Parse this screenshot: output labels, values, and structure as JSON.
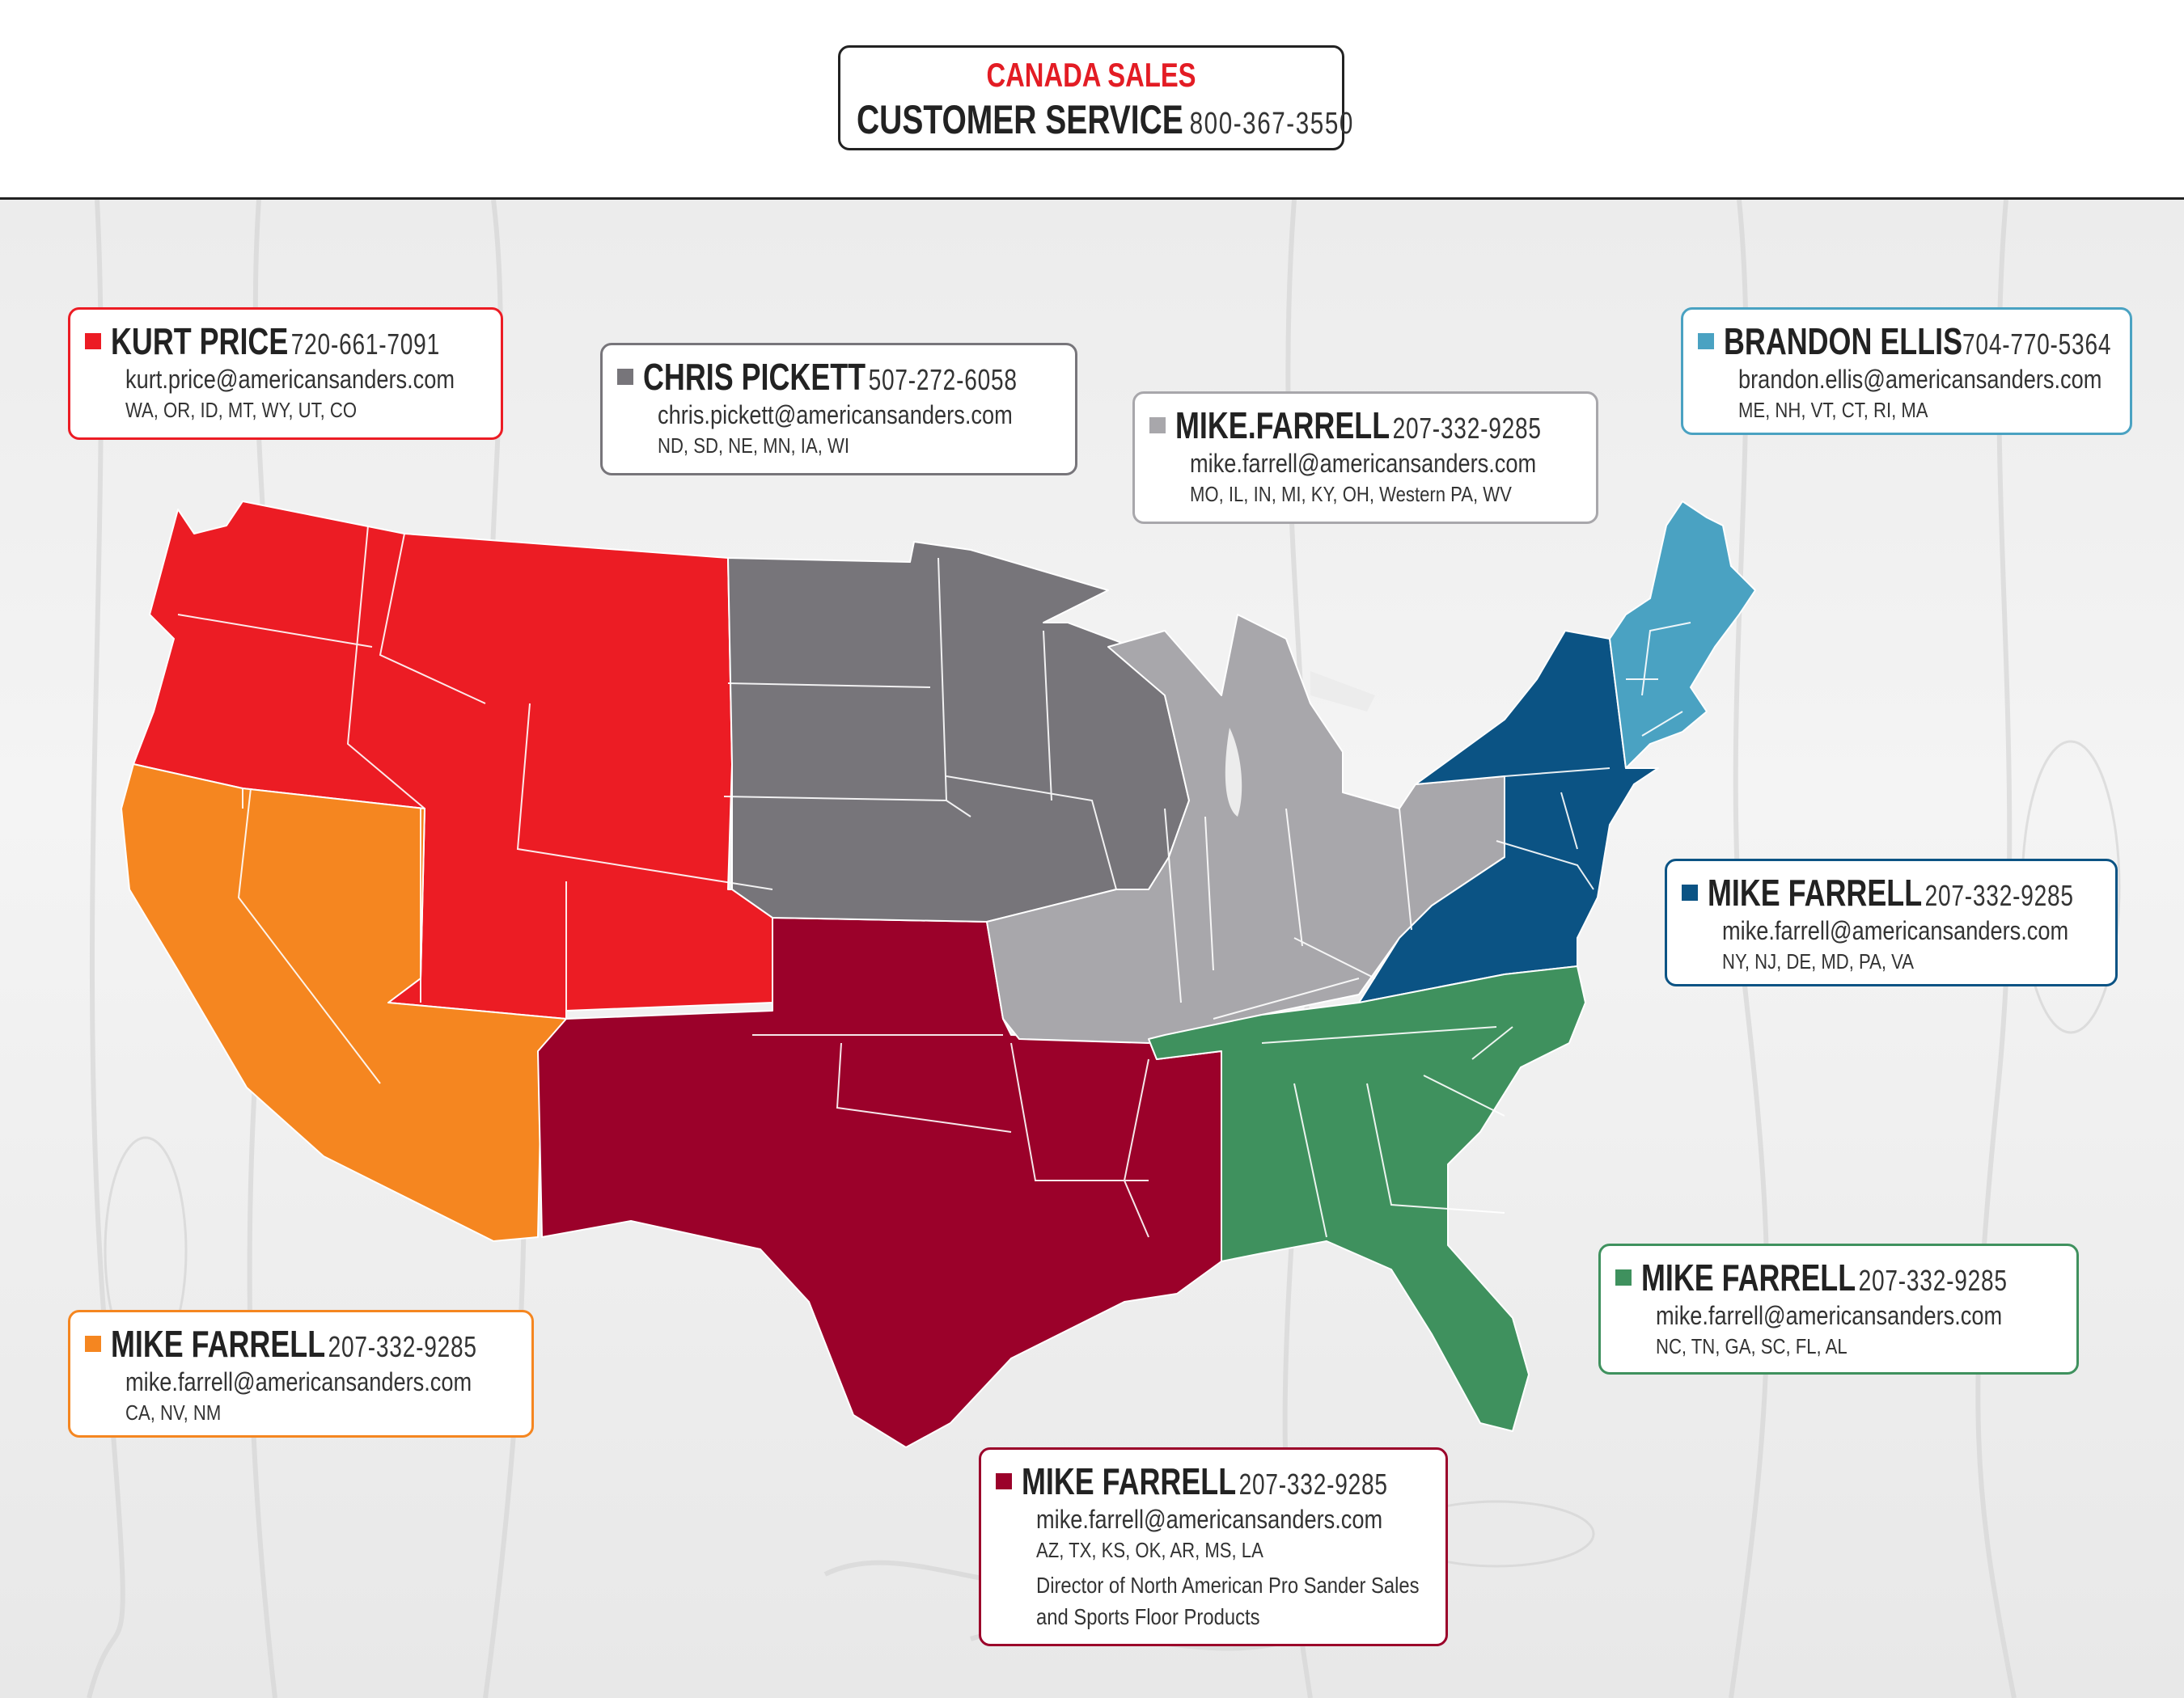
{
  "header": {
    "line1": "CANADA SALES",
    "line2_label": "CUSTOMER SERVICE",
    "line2_phone": "800-367-3550",
    "accent_color": "#e31c24"
  },
  "regions": [
    {
      "id": "west",
      "color": "#ec1c24",
      "name": "KURT PRICE",
      "phone": "720-661-7091",
      "email": "kurt.price@americansanders.com",
      "states": "WA, OR, ID, MT, WY, UT, CO"
    },
    {
      "id": "plains",
      "color": "#77757a",
      "name": "CHRIS PICKETT",
      "phone": "507-272-6058",
      "email": "chris.pickett@americansanders.com",
      "states": "ND, SD, NE, MN, IA, WI"
    },
    {
      "id": "midwest",
      "color": "#a8a7ab",
      "name": "MIKE.FARRELL",
      "phone": "207-332-9285",
      "email": "mike.farrell@americansanders.com",
      "states": "MO, IL, IN, MI, KY, OH, Western PA, WV"
    },
    {
      "id": "newengland",
      "color": "#4aa2c2",
      "name": "BRANDON ELLIS",
      "phone": "704-770-5364",
      "email": "brandon.ellis@americansanders.com",
      "states": "ME, NH, VT, CT, RI, MA"
    },
    {
      "id": "midatlantic",
      "color": "#0b5384",
      "name": "MIKE FARRELL",
      "phone": "207-332-9285",
      "email": "mike.farrell@americansanders.com",
      "states": "NY, NJ, DE, MD, PA, VA"
    },
    {
      "id": "southeast",
      "color": "#3f915e",
      "name": "MIKE FARRELL",
      "phone": "207-332-9285",
      "email": "mike.farrell@americansanders.com",
      "states": "NC, TN, GA, SC, FL, AL"
    },
    {
      "id": "southwest",
      "color": "#f58620",
      "name": "MIKE FARRELL",
      "phone": "207-332-9285",
      "email": "mike.farrell@americansanders.com",
      "states": "CA, NV, NM"
    },
    {
      "id": "south",
      "color": "#9b012a",
      "name": "MIKE FARRELL",
      "phone": "207-332-9285",
      "email": "mike.farrell@americansanders.com",
      "states": "AZ, TX, KS, OK, AR, MS, LA",
      "extra1": "Director of North American Pro Sander Sales",
      "extra2": "and Sports Floor Products"
    }
  ],
  "texas_color": "#9a1b30"
}
